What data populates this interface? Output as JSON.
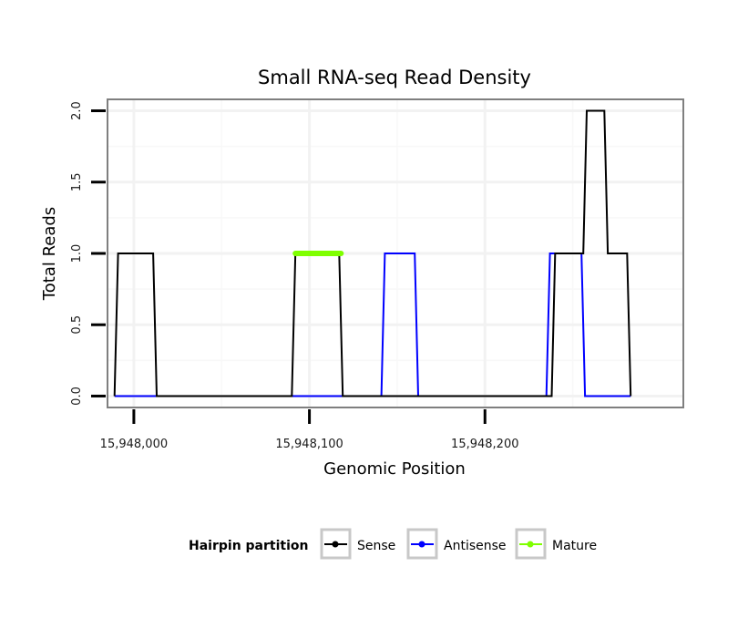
{
  "chart_data": {
    "type": "line",
    "title": "Small RNA-seq Read Density",
    "xlabel": "Genomic Position",
    "ylabel": "Total Reads",
    "xlim": [
      15947985,
      15948313
    ],
    "ylim": [
      -0.08,
      2.08
    ],
    "x_ticks": [
      15948000,
      15948100,
      15948200
    ],
    "x_tick_labels": [
      "15,948,000",
      "15,948,100",
      "15,948,200"
    ],
    "y_ticks": [
      0.0,
      0.5,
      1.0,
      1.5,
      2.0
    ],
    "y_tick_labels": [
      "0.0",
      "0.5",
      "1.0",
      "1.5",
      "2.0"
    ],
    "grid": true,
    "series": [
      {
        "name": "Sense",
        "color": "#000000",
        "x": [
          15947989,
          15947991,
          15948011,
          15948013,
          15948090,
          15948092,
          15948117,
          15948119,
          15948238,
          15948240,
          15948256,
          15948258,
          15948268,
          15948270,
          15948281,
          15948283
        ],
        "y": [
          0,
          1,
          1,
          0,
          0,
          1,
          1,
          0,
          0,
          1,
          1,
          2,
          2,
          1,
          1,
          0
        ]
      },
      {
        "name": "Antisense",
        "color": "#0000ff",
        "x": [
          15947989,
          15948141,
          15948143,
          15948160,
          15948162,
          15948235,
          15948237,
          15948255,
          15948257,
          15948283
        ],
        "y": [
          0,
          0,
          1,
          1,
          0,
          0,
          1,
          1,
          0,
          0
        ]
      },
      {
        "name": "Mature",
        "color": "#7fff00",
        "x": [
          15948092,
          15948118
        ],
        "y": [
          1,
          1
        ]
      }
    ],
    "legend": {
      "title": "Hairpin partition",
      "position": "bottom",
      "entries": [
        "Sense",
        "Antisense",
        "Mature"
      ]
    }
  }
}
